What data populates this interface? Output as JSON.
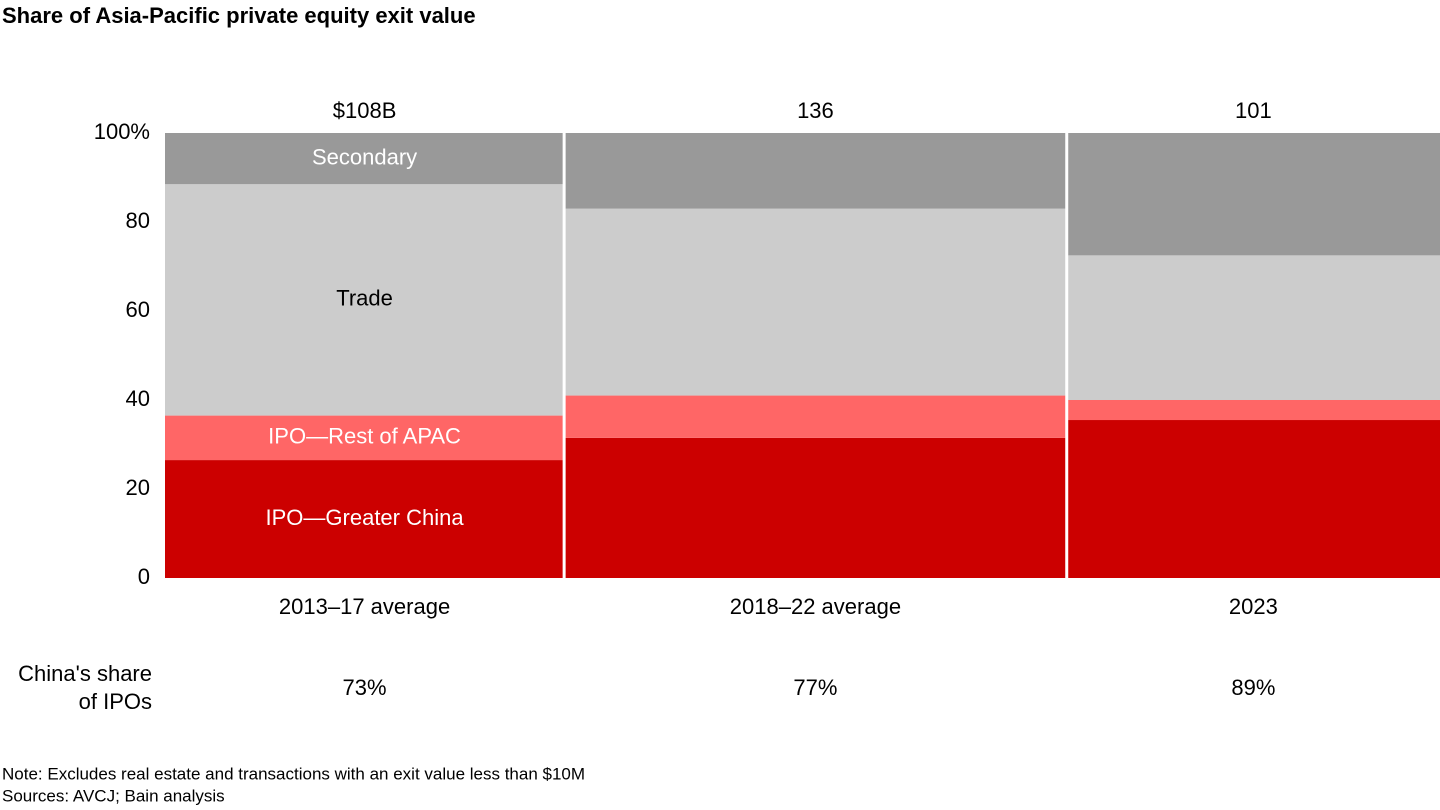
{
  "chart_data": {
    "type": "marimekko",
    "title": "Share of Asia-Pacific private equity exit value",
    "categories": [
      "2013–17 average",
      "2018–22 average",
      "2023"
    ],
    "totals": [
      108,
      136,
      101
    ],
    "total_labels": [
      "$108B",
      "136",
      "101"
    ],
    "series": [
      {
        "name": "IPO—Greater China",
        "color": "#cc0000",
        "label_color": "#ffffff",
        "values": [
          26.5,
          31.5,
          35.5
        ]
      },
      {
        "name": "IPO—Rest of APAC",
        "color": "#ff6666",
        "label_color": "#ffffff",
        "values": [
          10,
          9.5,
          4.5
        ]
      },
      {
        "name": "Trade",
        "color": "#cccccc",
        "label_color": "#000000",
        "values": [
          52,
          42,
          32.5
        ]
      },
      {
        "name": "Secondary",
        "color": "#999999",
        "label_color": "#ffffff",
        "values": [
          11.5,
          17,
          27.5
        ]
      }
    ],
    "ylim": [
      0,
      100
    ],
    "yticks": [
      0,
      20,
      40,
      60,
      80,
      {
        "value": 100,
        "label": "100%"
      }
    ],
    "share_label": [
      "China's share",
      "of IPOs"
    ],
    "share_values": [
      73,
      77,
      89
    ],
    "share_value_labels": [
      "73%",
      "77%",
      "89%"
    ],
    "note": "Note: Excludes real estate and transactions with an exit value less than $10M",
    "sources": "Sources: AVCJ; Bain analysis"
  }
}
